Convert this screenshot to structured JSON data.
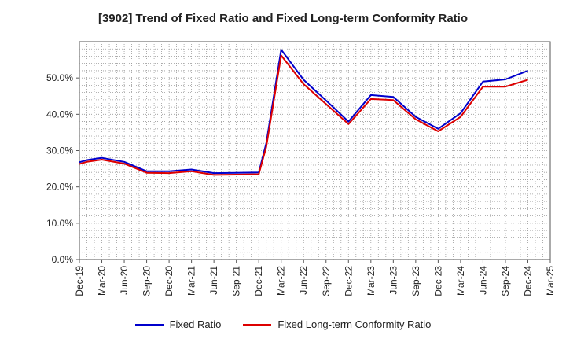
{
  "chart_data": {
    "type": "line",
    "title": "[3902]  Trend of Fixed Ratio and Fixed Long-term Conformity Ratio",
    "xlabel": "",
    "ylabel": "",
    "x": [
      "Dec-19",
      "Mar-20",
      "Jun-20",
      "Sep-20",
      "Dec-20",
      "Mar-21",
      "Jun-21",
      "Sep-21",
      "Dec-21",
      "Mar-22",
      "Jun-22",
      "Sep-22",
      "Dec-22",
      "Mar-23",
      "Jun-23",
      "Sep-23",
      "Dec-23",
      "Mar-24",
      "Jun-24",
      "Sep-24",
      "Dec-24",
      "Mar-25"
    ],
    "ylim": [
      0,
      60
    ],
    "yticks": [
      "0.0%",
      "10.0%",
      "20.0%",
      "30.0%",
      "40.0%",
      "50.0%"
    ],
    "grid": true,
    "legend_position": "bottom",
    "series": [
      {
        "name": "Fixed Ratio",
        "color": "#0000cc",
        "points": [
          [
            "Dec-19",
            26.8
          ],
          [
            "Jan-20",
            27.4
          ],
          [
            "Mar-20",
            28.0
          ],
          [
            "Jun-20",
            26.9
          ],
          [
            "Sep-20",
            24.3
          ],
          [
            "Dec-20",
            24.3
          ],
          [
            "Mar-21",
            24.8
          ],
          [
            "Jun-21",
            23.8
          ],
          [
            "Sep-21",
            23.9
          ],
          [
            "Dec-21",
            24.0
          ],
          [
            "Jan-22",
            32.0
          ],
          [
            "Mar-22",
            57.8
          ],
          [
            "Jun-22",
            49.5
          ],
          [
            "Sep-22",
            43.8
          ],
          [
            "Dec-22",
            38.0
          ],
          [
            "Mar-23",
            45.3
          ],
          [
            "Jun-23",
            44.8
          ],
          [
            "Sep-23",
            39.3
          ],
          [
            "Dec-23",
            36.0
          ],
          [
            "Mar-24",
            40.3
          ],
          [
            "Jun-24",
            49.0
          ],
          [
            "Sep-24",
            49.6
          ],
          [
            "Dec-24",
            52.0
          ]
        ]
      },
      {
        "name": "Fixed Long-term Conformity Ratio",
        "color": "#dd0000",
        "points": [
          [
            "Dec-19",
            26.3
          ],
          [
            "Jan-20",
            26.9
          ],
          [
            "Mar-20",
            27.5
          ],
          [
            "Jun-20",
            26.4
          ],
          [
            "Sep-20",
            23.9
          ],
          [
            "Dec-20",
            23.8
          ],
          [
            "Mar-21",
            24.3
          ],
          [
            "Jun-21",
            23.3
          ],
          [
            "Sep-21",
            23.4
          ],
          [
            "Dec-21",
            23.5
          ],
          [
            "Jan-22",
            31.0
          ],
          [
            "Mar-22",
            56.2
          ],
          [
            "Jun-22",
            48.3
          ],
          [
            "Sep-22",
            42.8
          ],
          [
            "Dec-22",
            37.3
          ],
          [
            "Mar-23",
            44.2
          ],
          [
            "Jun-23",
            43.9
          ],
          [
            "Sep-23",
            38.6
          ],
          [
            "Dec-23",
            35.3
          ],
          [
            "Mar-24",
            39.3
          ],
          [
            "Jun-24",
            47.6
          ],
          [
            "Sep-24",
            47.6
          ],
          [
            "Dec-24",
            49.5
          ]
        ]
      }
    ]
  }
}
